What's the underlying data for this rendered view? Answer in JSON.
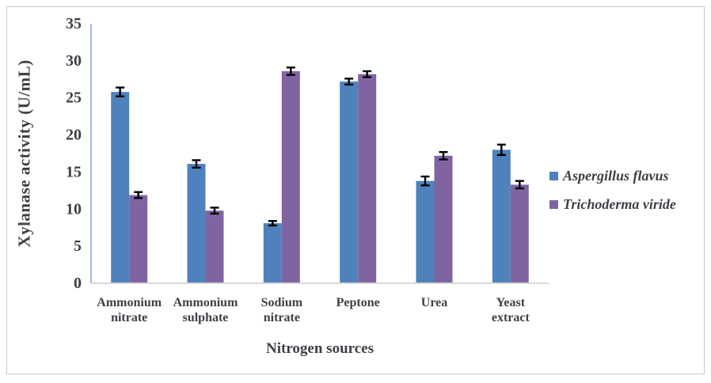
{
  "figure": {
    "background_color": "#ffffff",
    "border_color": "#c9c9c9"
  },
  "chart_data": {
    "type": "bar",
    "title": "",
    "xlabel": "Nitrogen sources",
    "ylabel": "Xylanase activity (U/mL)",
    "categories": [
      "Ammonium nitrate",
      "Ammonium sulphate",
      "Sodium nitrate",
      "Peptone",
      "Urea",
      "Yeast extract"
    ],
    "category_label_lines": [
      [
        "Ammonium",
        "nitrate"
      ],
      [
        "Ammonium",
        "sulphate"
      ],
      [
        "Sodium",
        "nitrate"
      ],
      [
        "Peptone"
      ],
      [
        "Urea"
      ],
      [
        "Yeast",
        "extract"
      ]
    ],
    "series": [
      {
        "name": "Aspergillus flavus",
        "color": "#4F81BD",
        "values": [
          25.8,
          16.1,
          8.1,
          27.2,
          13.8,
          18.0
        ],
        "errors": [
          0.6,
          0.5,
          0.3,
          0.4,
          0.6,
          0.7
        ]
      },
      {
        "name": "Trichoderma viride",
        "color": "#8064A2",
        "values": [
          11.9,
          9.8,
          28.6,
          28.2,
          17.2,
          13.3
        ],
        "errors": [
          0.4,
          0.4,
          0.5,
          0.4,
          0.5,
          0.5
        ]
      }
    ],
    "ylim": [
      0,
      35
    ],
    "yticks": [
      0,
      5,
      10,
      15,
      20,
      25,
      30,
      35
    ],
    "grid": false,
    "legend_position": "right",
    "error_bar_color": "#000000",
    "text_color": "#3f3f46",
    "y_axis_line_color": "#a4b8df",
    "x_axis_line_color": "#d9d9d9"
  },
  "legend": {
    "items": [
      {
        "label": "Aspergillus flavus",
        "color": "#4F81BD"
      },
      {
        "label": "Trichoderma viride",
        "color": "#8064A2"
      }
    ]
  }
}
